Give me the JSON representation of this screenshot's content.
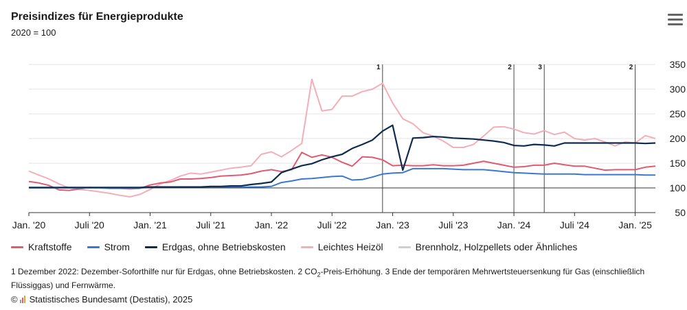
{
  "title": "Preisindizes für Energieprodukte",
  "subtitle": "2020 = 100",
  "footnote": {
    "part1": "1 Dezember 2022: Dezember-Soforthilfe nur für Erdgas, ohne Betriebskosten. 2 CO",
    "sub": "2",
    "part2": "-Preis-Erhöhung. 3 Ende der temporären Mehrwertsteuersenkung für Gas (einschließlich Flüssiggas) und Fernwärme."
  },
  "source": {
    "copyright": "©",
    "text": "Statistisches Bundesamt (Destatis), 2025"
  },
  "colors": {
    "kraftstoffe": "#e05a72",
    "strom": "#3a78d0",
    "erdgas": "#0d2a4f",
    "heizoel": "#f4aeb8",
    "brennholz": "#cfcfcf"
  },
  "chart_data": {
    "type": "line",
    "title": "Preisindizes für Energieprodukte",
    "subtitle": "2020 = 100",
    "x_start": "2020-01",
    "x_tick_labels": [
      "Jan. '20",
      "Juli '20",
      "Jan. '21",
      "Juli '21",
      "Jan. '22",
      "Juli '22",
      "Jan. '23",
      "Juli '23",
      "Jan. '24",
      "Juli '24",
      "Jan. '25"
    ],
    "y_ticks": [
      50,
      100,
      150,
      200,
      250,
      300,
      350
    ],
    "ylim": [
      50,
      350
    ],
    "grid": true,
    "legend_position": "bottom",
    "annotations": [
      {
        "month": "2022-12",
        "label": "1"
      },
      {
        "month": "2024-01",
        "label": "2"
      },
      {
        "month": "2024-04",
        "label": "3"
      },
      {
        "month": "2025-01",
        "label": "2"
      }
    ],
    "series": [
      {
        "name": "Kraftstoffe",
        "color": "#e05a72",
        "values": [
          113,
          110,
          105,
          96,
          95,
          98,
          101,
          100,
          99,
          99,
          98,
          99,
          106,
          110,
          112,
          118,
          118,
          119,
          121,
          124,
          125,
          126,
          129,
          134,
          137,
          133,
          137,
          172,
          162,
          167,
          162,
          152,
          144,
          163,
          162,
          157,
          145,
          146,
          145,
          145,
          147,
          145,
          145,
          146,
          150,
          154,
          150,
          146,
          142,
          143,
          146,
          146,
          150,
          147,
          144,
          144,
          140,
          136,
          137,
          137,
          137,
          142,
          144
        ]
      },
      {
        "name": "Strom",
        "color": "#3a78d0",
        "values": [
          100,
          100,
          100,
          100,
          100,
          100,
          100,
          100,
          100,
          100,
          100,
          100,
          101,
          101,
          101,
          101,
          101,
          101,
          101,
          101,
          101,
          101,
          102,
          102,
          103,
          111,
          114,
          118,
          119,
          121,
          123,
          124,
          116,
          117,
          122,
          128,
          130,
          131,
          139,
          139,
          139,
          139,
          138,
          137,
          137,
          137,
          135,
          133,
          131,
          130,
          129,
          128,
          128,
          128,
          128,
          127,
          127,
          127,
          127,
          127,
          127,
          126,
          126
        ]
      },
      {
        "name": "Erdgas, ohne Betriebskosten",
        "color": "#0d2a4f",
        "values": [
          101,
          101,
          101,
          101,
          101,
          101,
          101,
          101,
          101,
          101,
          101,
          101,
          102,
          102,
          102,
          102,
          102,
          102,
          103,
          103,
          104,
          104,
          107,
          109,
          112,
          131,
          138,
          145,
          149,
          157,
          163,
          168,
          180,
          188,
          197,
          215,
          227,
          136,
          201,
          202,
          204,
          203,
          201,
          200,
          199,
          197,
          195,
          192,
          186,
          185,
          188,
          187,
          185,
          191,
          191,
          191,
          191,
          191,
          191,
          191,
          191,
          190,
          191
        ]
      },
      {
        "name": "Leichtes Heizöl",
        "color": "#f4aeb8",
        "values": [
          134,
          126,
          118,
          108,
          100,
          97,
          95,
          92,
          89,
          85,
          82,
          87,
          97,
          108,
          115,
          124,
          130,
          128,
          132,
          136,
          140,
          142,
          145,
          168,
          173,
          163,
          176,
          190,
          320,
          256,
          259,
          286,
          286,
          295,
          300,
          312,
          272,
          240,
          230,
          212,
          205,
          195,
          182,
          182,
          188,
          205,
          223,
          224,
          219,
          212,
          209,
          216,
          208,
          213,
          200,
          197,
          200,
          193,
          185,
          193,
          191,
          206,
          200
        ]
      },
      {
        "name": "Brennholz, Holzpellets oder Ähnliches",
        "color": "#cfcfcf",
        "values": []
      }
    ]
  }
}
